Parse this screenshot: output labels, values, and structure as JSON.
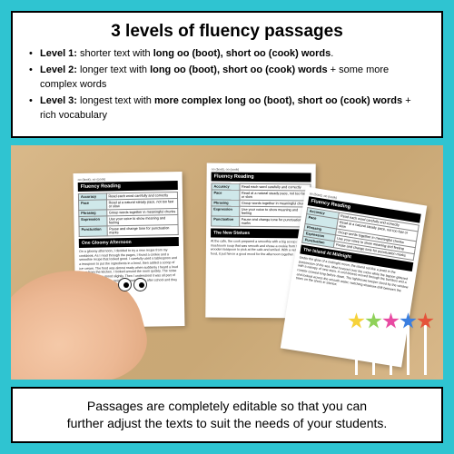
{
  "background_color": "#2fc4d1",
  "box_border_color": "#000000",
  "box_bg_color": "#ffffff",
  "top": {
    "title": "3 levels of fluency passages",
    "levels": [
      {
        "label": "Level 1:",
        "plain1": " shorter text with ",
        "bold1": "long oo (boot), short oo (cook) words",
        "plain2": "."
      },
      {
        "label": "Level 2:",
        "plain1": " longer text with ",
        "bold1": "long oo (boot), short oo (cook) words",
        "plain2": " + some more complex words"
      },
      {
        "label": "Level 3:",
        "plain1": " longest text with ",
        "bold1": "more complex long oo (boot), short oo (cook) words",
        "plain2": " + rich vocabulary"
      }
    ]
  },
  "worksheets": {
    "tag": "oo (boot), oo (cook)",
    "heading": "Fluency Reading",
    "rows": [
      {
        "k": "Accuracy",
        "v": "Read each word carefully and correctly"
      },
      {
        "k": "Pace",
        "v": "Read at a natural steady pace, not too fast or slow"
      },
      {
        "k": "Phrasing",
        "v": "Group words together in meaningful chunks"
      },
      {
        "k": "Expression",
        "v": "Use your voice to show meaning and feeling"
      },
      {
        "k": "Punctuation",
        "v": "Pause and change tone for punctuation marks"
      }
    ],
    "story1": "One Gloomy Afternoon",
    "story2": "The New Statues",
    "story3": "The Island At Midnight",
    "body1": "On a gloomy afternoon, I decided to try a new recipe from my cookbook. As I read through the pages, I found a cookie and a smoothie recipe that looked good. I carefully used a tablespoon and a teaspoon to put the ingredients in a bowl, then added a scoop of ice cream. The food was almost ready when suddenly I heard a loud boom from the kitchen. I looked around the room quickly. The noise had changed my mood slightly. Then I understood it was all part of the fun. I waited for my neighbourhood friends after school and they all stood amazed.",
    "body2": "At the cafe, the cook prepared a smoothie with a big scoop of mushroom soup that was smooth and chose a cookie from the wooden teaspoon to pick at the cafe and smiled. With a very good food, it put him in a good mood for the afternoon together.",
    "body3": "Under the glow of a midnight moon, the island sat like a jewel in the possession of the sea. Mist hovered over the rocks while the lagoon glittered with a canopy of new stars. A cool breeze moved through the bamboo and a rooster crowed long before dawn. The lighthouse keeper stood by the window and looked across the smooth water, watching shadows drift between the trees on the shore in silence."
  },
  "star_colors": [
    "#f6d23a",
    "#8fd159",
    "#e84aa2",
    "#3b7fe0",
    "#e5533a"
  ],
  "bottom": {
    "line1": "Passages are completely editable so that you can",
    "line2": "further adjust the texts to suit the needs of your students."
  }
}
